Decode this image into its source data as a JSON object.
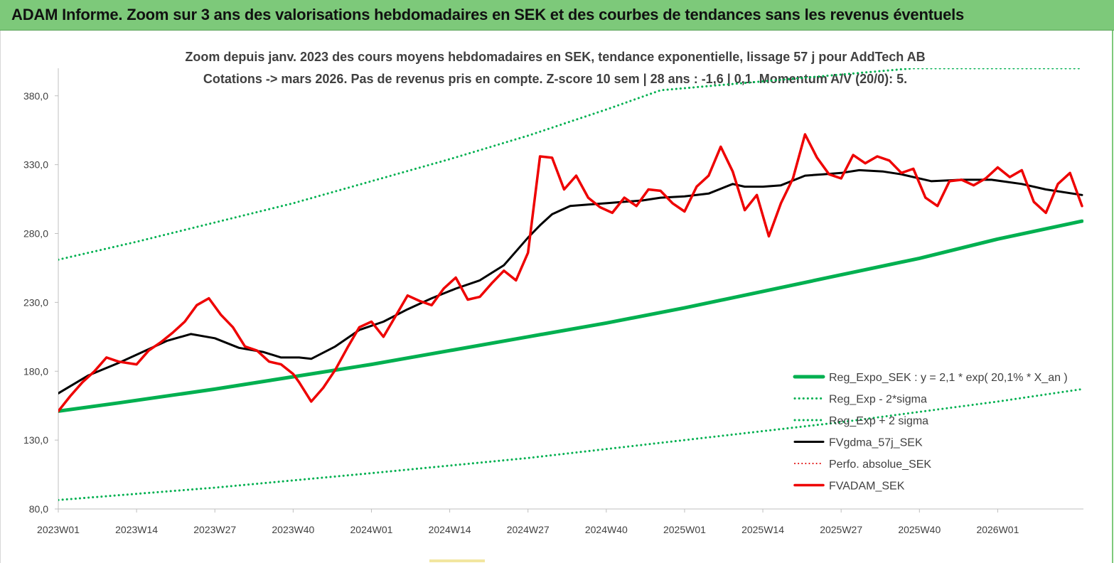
{
  "banner": {
    "title": "ADAM Informe. Zoom sur 3 ans des valorisations hebdomadaires en SEK et des courbes de tendances sans les revenus éventuels"
  },
  "colors": {
    "banner_bg": "#7dc97a",
    "reg_expo": "#00b050",
    "sigma_lines": "#00b050",
    "fvgdma": "#000000",
    "perfo": "#e00000",
    "fvadam": "#ee0000"
  },
  "chart_data": {
    "type": "line",
    "title": "Zoom depuis janv. 2023 des cours moyens hebdomadaires en SEK, tendance exponentielle, lissage 57 j pour AddTech AB",
    "subtitle": "Cotations -> mars 2026. Pas de revenus pris en compte. Z-score 10 sem | 28 ans : -1,6 | 0,1. Momentum A/V (20/0): 5.",
    "xlabel": "",
    "ylabel": "",
    "ylim": [
      80,
      400
    ],
    "yticks": [
      "380,0",
      "330,0",
      "280,0",
      "230,0",
      "180,0",
      "130,0",
      "80,0"
    ],
    "ytick_values": [
      380,
      330,
      280,
      230,
      180,
      130,
      80
    ],
    "xticks": [
      "2023W01",
      "2023W14",
      "2023W27",
      "2023W40",
      "2024W01",
      "2024W14",
      "2024W27",
      "2024W40",
      "2025W01",
      "2025W14",
      "2025W27",
      "2025W40",
      "2026W01"
    ],
    "xtick_index": [
      0,
      13,
      26,
      39,
      52,
      65,
      78,
      91,
      104,
      117,
      130,
      143,
      156
    ],
    "n_weeks": 171,
    "grid": false,
    "legend_position": "bottom-right",
    "legend": [
      {
        "label": "Reg_Expo_SEK : y = 2,1 * exp( 20,1% *  X_an )",
        "style": "solid-thick",
        "series": "reg_expo"
      },
      {
        "label": "Reg_Exp - 2*sigma",
        "style": "dotted",
        "series": "reg_minus"
      },
      {
        "label": "Reg_Exp + 2 sigma",
        "style": "dotted",
        "series": "reg_plus"
      },
      {
        "label": "FVgdma_57j_SEK",
        "style": "solid",
        "series": "fvgdma"
      },
      {
        "label": "Perfo. absolue_SEK",
        "style": "dotted-red",
        "series": "perfo"
      },
      {
        "label": "FVADAM_SEK",
        "style": "solid-red",
        "series": "fvadam"
      }
    ],
    "series": [
      {
        "key": "reg_expo",
        "x": [
          0,
          10,
          26,
          39,
          52,
          65,
          78,
          91,
          104,
          117,
          130,
          143,
          156,
          170
        ],
        "values": [
          151,
          157,
          167,
          176,
          185,
          195,
          205,
          215,
          226,
          238,
          250,
          262,
          276,
          289
        ]
      },
      {
        "key": "reg_minus",
        "x": [
          0,
          26,
          52,
          78,
          104,
          130,
          156,
          170
        ],
        "values": [
          86.5,
          95.5,
          106,
          117,
          130,
          143,
          158,
          167
        ]
      },
      {
        "key": "reg_plus",
        "x": [
          0,
          13,
          26,
          39,
          52,
          65,
          78,
          91,
          100,
          142,
          170
        ],
        "values": [
          261,
          274,
          288,
          302,
          318,
          334,
          351,
          370,
          384,
          400,
          400
        ]
      },
      {
        "key": "fvgdma",
        "x": [
          0,
          5,
          10,
          14,
          18,
          22,
          26,
          30,
          34,
          37,
          40,
          42,
          46,
          50,
          54,
          58,
          62,
          66,
          70,
          74,
          78,
          80,
          82,
          85,
          88,
          91,
          94,
          97,
          100,
          104,
          108,
          112,
          114,
          117,
          120,
          124,
          127,
          130,
          133,
          137,
          140,
          145,
          150,
          155,
          160,
          164,
          170
        ],
        "values": [
          164,
          177,
          186,
          194,
          202,
          207,
          204,
          197,
          194,
          190,
          190,
          189,
          198,
          210,
          216,
          225,
          233,
          240,
          246,
          257,
          277,
          286,
          294,
          300,
          301,
          302,
          303,
          304,
          306,
          307,
          309,
          316,
          314,
          314,
          315,
          322,
          323,
          324,
          326,
          325,
          323,
          318,
          319,
          319,
          316,
          312,
          308
        ]
      },
      {
        "key": "fvadam",
        "x": [
          0,
          2,
          4,
          6,
          8,
          10,
          13,
          15,
          17,
          19,
          21,
          23,
          25,
          27,
          29,
          31,
          33,
          35,
          37,
          39,
          40,
          42,
          44,
          46,
          48,
          50,
          52,
          54,
          56,
          58,
          60,
          62,
          64,
          66,
          68,
          70,
          72,
          74,
          76,
          78,
          80,
          82,
          84,
          86,
          88,
          90,
          92,
          94,
          96,
          98,
          100,
          102,
          104,
          106,
          108,
          110,
          112,
          114,
          116,
          118,
          120,
          122,
          124,
          126,
          128,
          130,
          132,
          134,
          136,
          138,
          140,
          142,
          144,
          146,
          148,
          150,
          152,
          154,
          156,
          158,
          160,
          162,
          164,
          166,
          168,
          170
        ],
        "values": [
          151,
          162,
          172,
          180,
          190,
          187,
          185,
          195,
          201,
          208,
          216,
          228,
          233,
          221,
          212,
          198,
          195,
          187,
          185,
          178,
          172,
          158,
          168,
          181,
          197,
          212,
          216,
          205,
          220,
          235,
          231,
          228,
          240,
          248,
          232,
          234,
          244,
          253,
          246,
          266,
          336,
          335,
          312,
          322,
          306,
          299,
          295,
          306,
          300,
          312,
          311,
          302,
          296,
          314,
          322,
          343,
          325,
          297,
          308,
          278,
          302,
          320,
          352,
          335,
          323,
          320,
          337,
          331,
          336,
          333,
          324,
          327,
          306,
          300,
          318,
          319,
          315,
          320,
          328,
          321,
          326,
          303,
          295,
          316,
          324,
          300
        ]
      }
    ]
  }
}
